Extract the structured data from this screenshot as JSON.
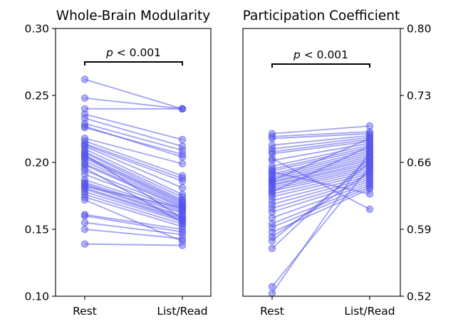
{
  "chart_data": [
    {
      "type": "line",
      "title": "Whole-Brain Modularity",
      "categories": [
        "Rest",
        "List/Read"
      ],
      "ylim": [
        0.1,
        0.3
      ],
      "yticks": [
        "0.10",
        "0.15",
        "0.20",
        "0.25",
        "0.30"
      ],
      "yaxis_side": "left",
      "annotation": {
        "italic": "p",
        "text": " < 0.001"
      },
      "color": "#5555ee",
      "pairs": [
        [
          0.262,
          0.24
        ],
        [
          0.248,
          0.24
        ],
        [
          0.24,
          0.24
        ],
        [
          0.236,
          0.217
        ],
        [
          0.233,
          0.212
        ],
        [
          0.229,
          0.209
        ],
        [
          0.227,
          0.204
        ],
        [
          0.226,
          0.206
        ],
        [
          0.218,
          0.199
        ],
        [
          0.216,
          0.19
        ],
        [
          0.214,
          0.188
        ],
        [
          0.213,
          0.186
        ],
        [
          0.212,
          0.181
        ],
        [
          0.21,
          0.176
        ],
        [
          0.208,
          0.174
        ],
        [
          0.207,
          0.172
        ],
        [
          0.205,
          0.171
        ],
        [
          0.204,
          0.17
        ],
        [
          0.203,
          0.169
        ],
        [
          0.201,
          0.168
        ],
        [
          0.199,
          0.167
        ],
        [
          0.198,
          0.166
        ],
        [
          0.194,
          0.165
        ],
        [
          0.191,
          0.164
        ],
        [
          0.187,
          0.163
        ],
        [
          0.185,
          0.162
        ],
        [
          0.184,
          0.16
        ],
        [
          0.183,
          0.159
        ],
        [
          0.181,
          0.158
        ],
        [
          0.18,
          0.157
        ],
        [
          0.178,
          0.156
        ],
        [
          0.176,
          0.154
        ],
        [
          0.174,
          0.152
        ],
        [
          0.161,
          0.15
        ],
        [
          0.16,
          0.148
        ],
        [
          0.155,
          0.146
        ],
        [
          0.15,
          0.143
        ],
        [
          0.139,
          0.138
        ],
        [
          0.182,
          0.166
        ],
        [
          0.206,
          0.158
        ],
        [
          0.196,
          0.155
        ],
        [
          0.172,
          0.141
        ]
      ]
    },
    {
      "type": "line",
      "title": "Participation Coefficient",
      "categories": [
        "Rest",
        "List/Read"
      ],
      "ylim": [
        0.52,
        0.8
      ],
      "yticks": [
        "0.52",
        "0.59",
        "0.66",
        "0.73",
        "0.80"
      ],
      "yaxis_side": "right",
      "annotation": {
        "italic": "p",
        "text": " < 0.001"
      },
      "color": "#5555ee",
      "pairs": [
        [
          0.69,
          0.698
        ],
        [
          0.687,
          0.692
        ],
        [
          0.685,
          0.69
        ],
        [
          0.678,
          0.688
        ],
        [
          0.674,
          0.686
        ],
        [
          0.671,
          0.684
        ],
        [
          0.669,
          0.682
        ],
        [
          0.662,
          0.68
        ],
        [
          0.656,
          0.678
        ],
        [
          0.653,
          0.676
        ],
        [
          0.651,
          0.674
        ],
        [
          0.648,
          0.672
        ],
        [
          0.646,
          0.67
        ],
        [
          0.644,
          0.668
        ],
        [
          0.642,
          0.666
        ],
        [
          0.64,
          0.664
        ],
        [
          0.639,
          0.662
        ],
        [
          0.637,
          0.66
        ],
        [
          0.636,
          0.658
        ],
        [
          0.634,
          0.656
        ],
        [
          0.632,
          0.654
        ],
        [
          0.63,
          0.652
        ],
        [
          0.627,
          0.65
        ],
        [
          0.624,
          0.648
        ],
        [
          0.62,
          0.646
        ],
        [
          0.616,
          0.644
        ],
        [
          0.612,
          0.642
        ],
        [
          0.608,
          0.64
        ],
        [
          0.602,
          0.638
        ],
        [
          0.596,
          0.636
        ],
        [
          0.592,
          0.634
        ],
        [
          0.587,
          0.632
        ],
        [
          0.582,
          0.65
        ],
        [
          0.578,
          0.66
        ],
        [
          0.57,
          0.665
        ],
        [
          0.53,
          0.655
        ],
        [
          0.523,
          0.671
        ],
        [
          0.664,
          0.611
        ],
        [
          0.65,
          0.627
        ],
        [
          0.641,
          0.685
        ],
        [
          0.629,
          0.677
        ]
      ]
    }
  ]
}
